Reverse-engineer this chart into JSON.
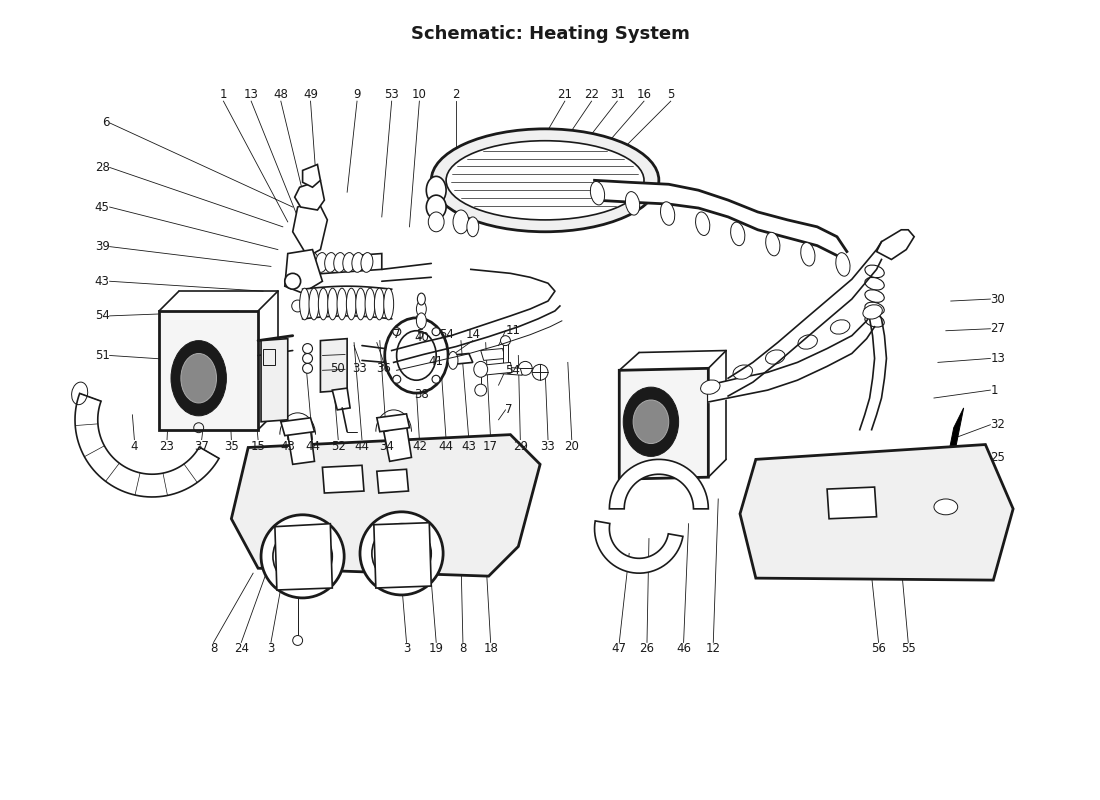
{
  "title": "Schematic: Heating System",
  "bg_color": "#ffffff",
  "line_color": "#1a1a1a",
  "fig_width": 11.0,
  "fig_height": 8.0
}
